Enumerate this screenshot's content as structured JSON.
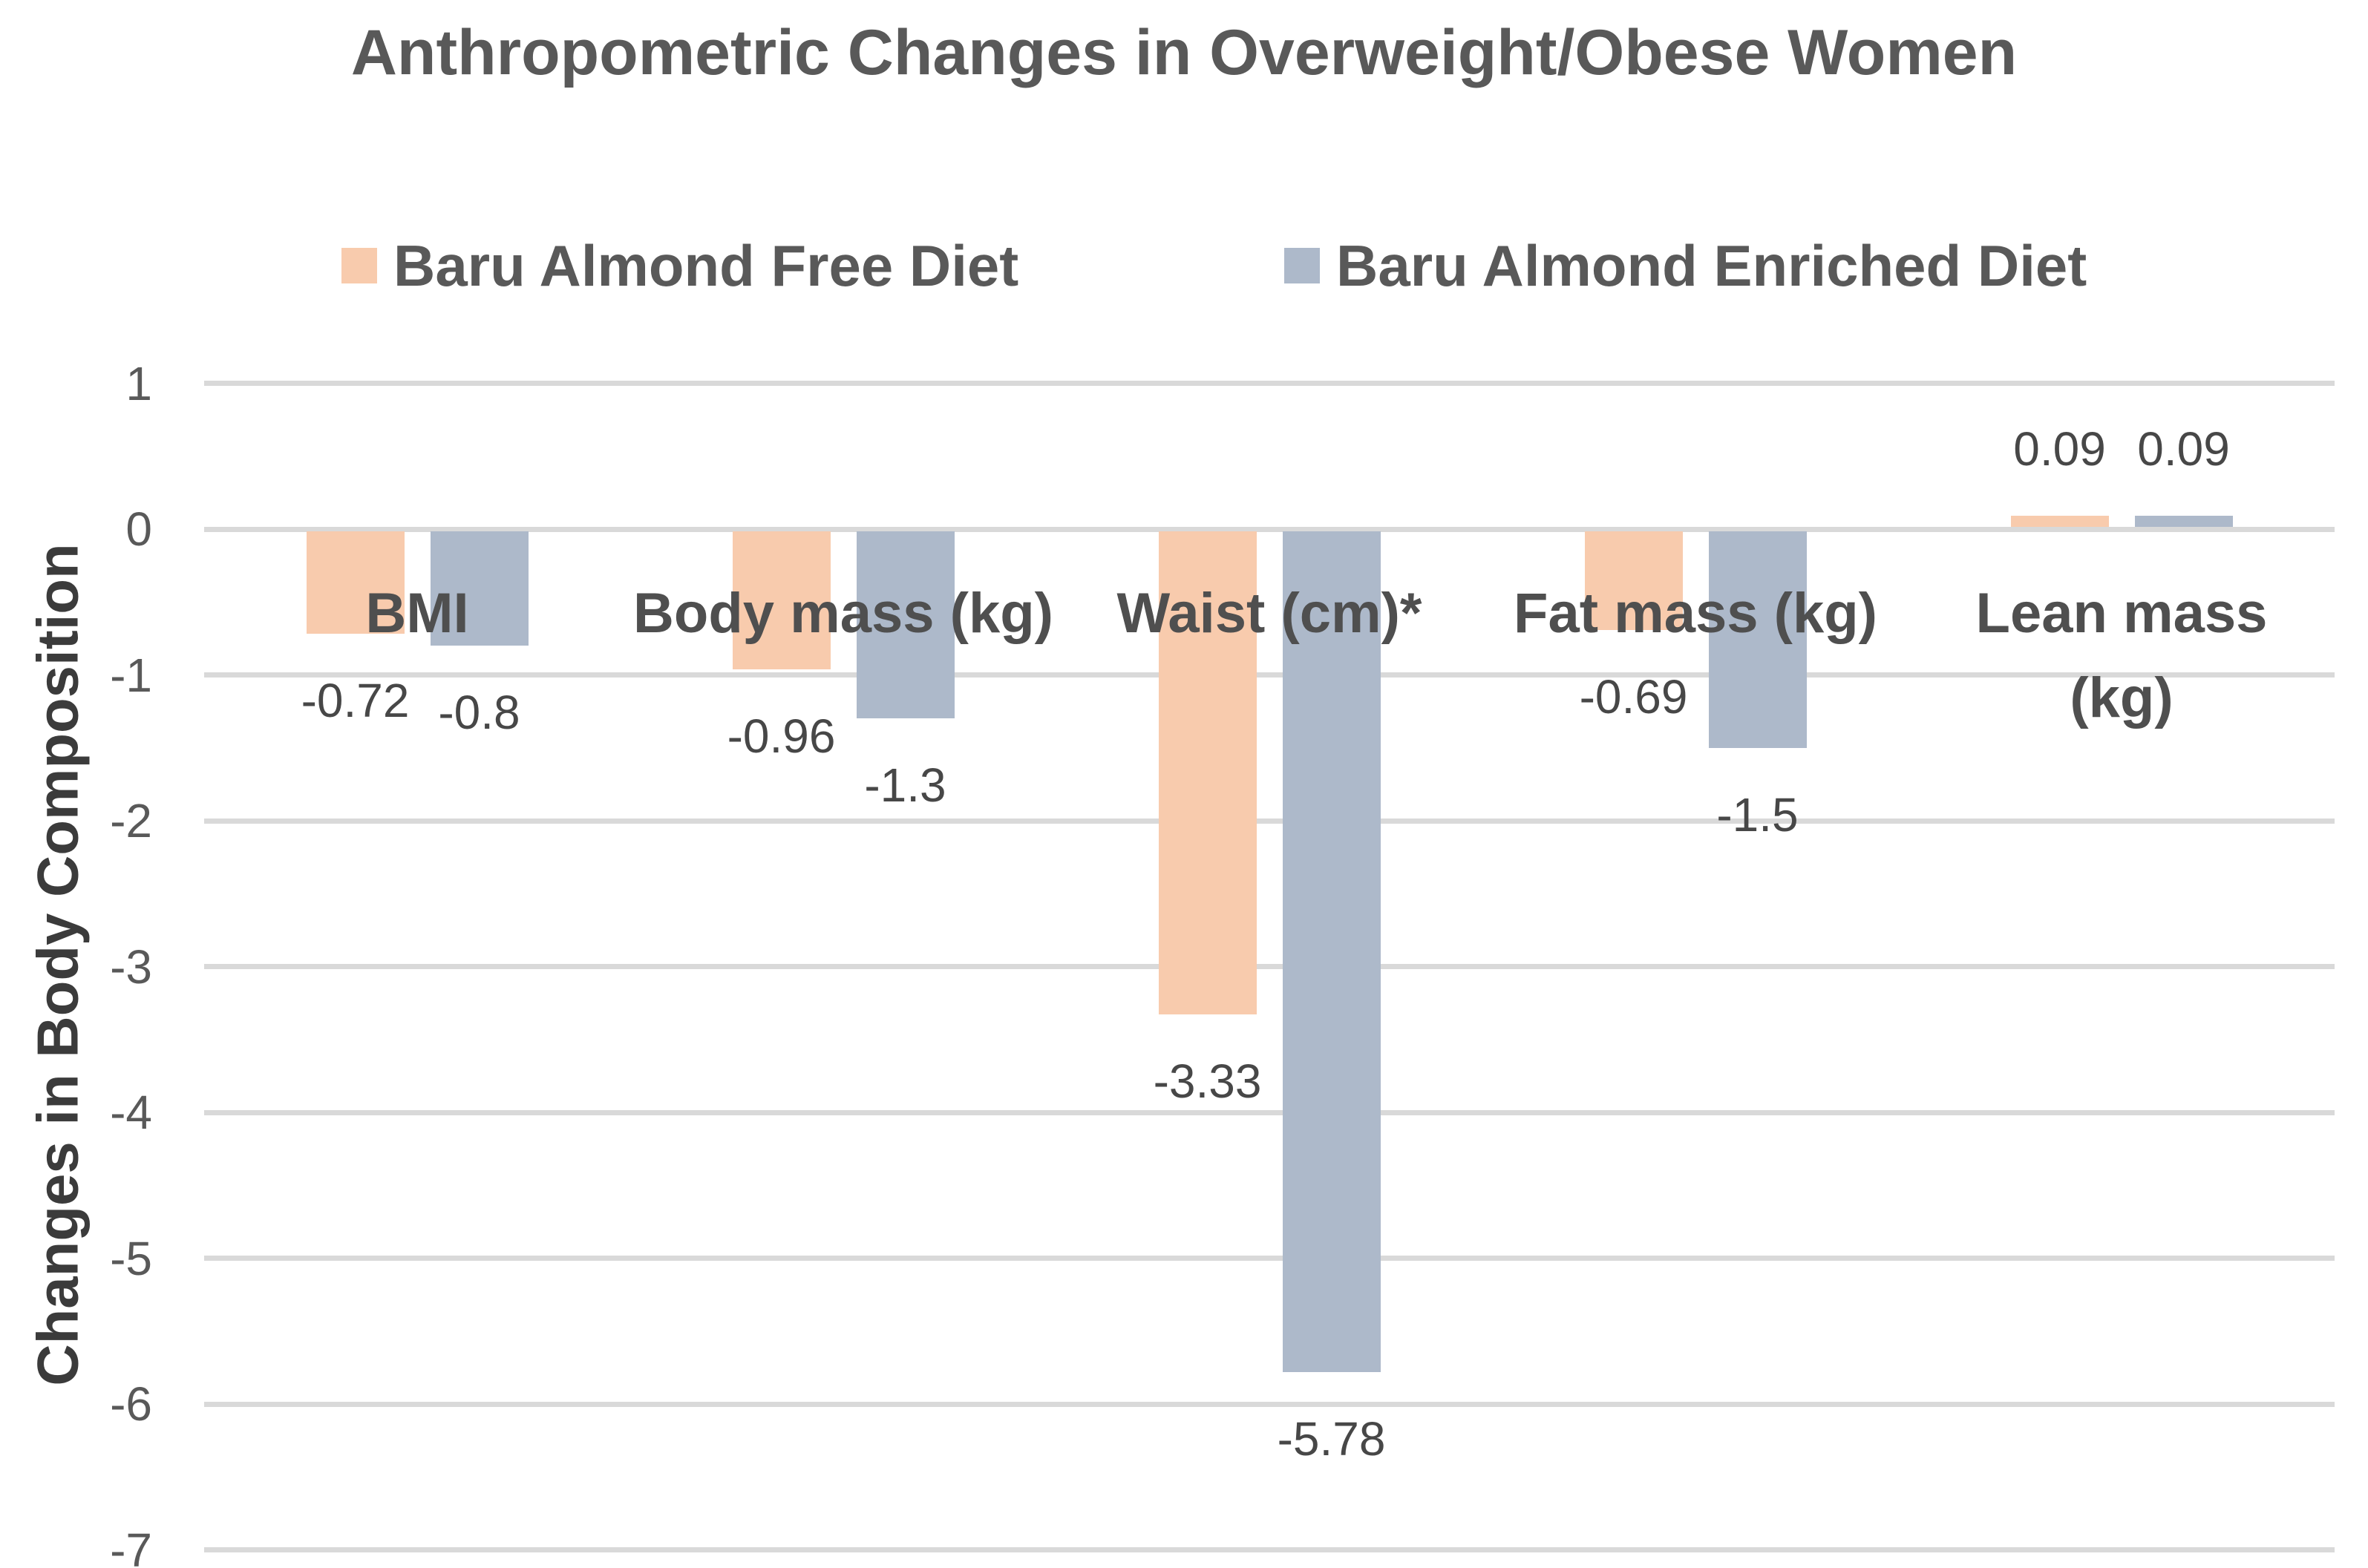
{
  "chart_data": {
    "type": "bar",
    "title": "Anthropometric Changes in Overweight/Obese Women",
    "ylabel": "Changes in Body Composition",
    "categories": [
      "BMI",
      "Body mass (kg)",
      "Waist (cm)*",
      "Fat mass (kg)",
      "Lean mass (kg)"
    ],
    "category_label_lines": [
      [
        "BMI"
      ],
      [
        "Body mass (kg)"
      ],
      [
        "Waist (cm)*"
      ],
      [
        "Fat mass (kg)"
      ],
      [
        "Lean mass",
        "(kg)"
      ]
    ],
    "series": [
      {
        "name": "Baru Almond Free Diet",
        "color": "#F8CBAD",
        "values": [
          -0.72,
          -0.96,
          -3.33,
          -0.69,
          0.09
        ],
        "labels": [
          "-0.72",
          "-0.96",
          "-3.33",
          "-0.69",
          "0.09"
        ]
      },
      {
        "name": "Baru Almond Enriched Diet",
        "color": "#ADB9CA",
        "values": [
          -0.8,
          -1.3,
          -5.78,
          -1.5,
          0.09
        ],
        "labels": [
          "-0.8",
          "-1.3",
          "-5.78",
          "-1.5",
          "0.09"
        ]
      }
    ],
    "yticks": [
      1,
      0,
      -1,
      -2,
      -3,
      -4,
      -5,
      -6,
      -7
    ],
    "ylim": [
      -7,
      1
    ],
    "grid": true,
    "legend_position": "top",
    "gridline_color": "#D9D9D9",
    "text_color": "#595959",
    "data_label_color": "#474747"
  }
}
